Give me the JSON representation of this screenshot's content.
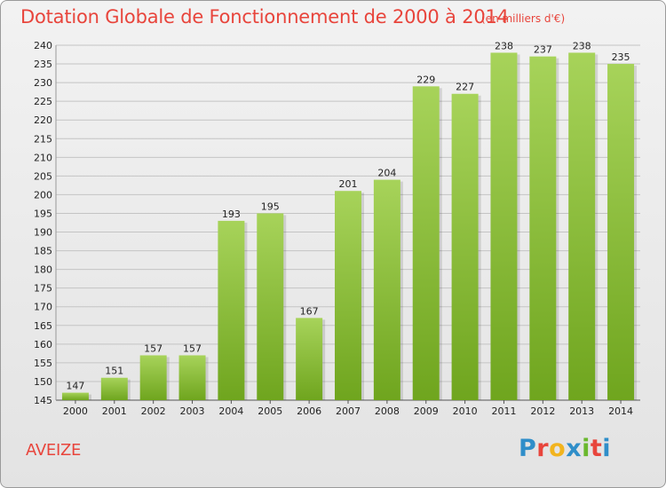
{
  "header": {
    "title": "Dotation Globale de Fonctionnement de 2000 à 2014",
    "subtitle": "(en milliers d'€)"
  },
  "footer": {
    "commune": "AVEIZE",
    "logo_text": "Proxiti",
    "logo_colors": [
      "#2f8ec9",
      "#e8453c",
      "#f2b41e",
      "#2f8ec9",
      "#6ab82e",
      "#e8453c",
      "#2f8ec9"
    ]
  },
  "colors": {
    "title": "#e8453c",
    "bar_light": "#a7d35a",
    "bar_dark": "#6fa51e",
    "grid": "#c4c4c4"
  },
  "chart_data": {
    "type": "bar",
    "categories": [
      "2000",
      "2001",
      "2002",
      "2003",
      "2004",
      "2005",
      "2006",
      "2007",
      "2008",
      "2009",
      "2010",
      "2011",
      "2012",
      "2013",
      "2014"
    ],
    "values": [
      147,
      151,
      157,
      157,
      193,
      195,
      167,
      201,
      204,
      229,
      227,
      238,
      237,
      238,
      235
    ],
    "ylim": [
      145,
      240
    ],
    "ytick_step": 5,
    "grid": true
  }
}
